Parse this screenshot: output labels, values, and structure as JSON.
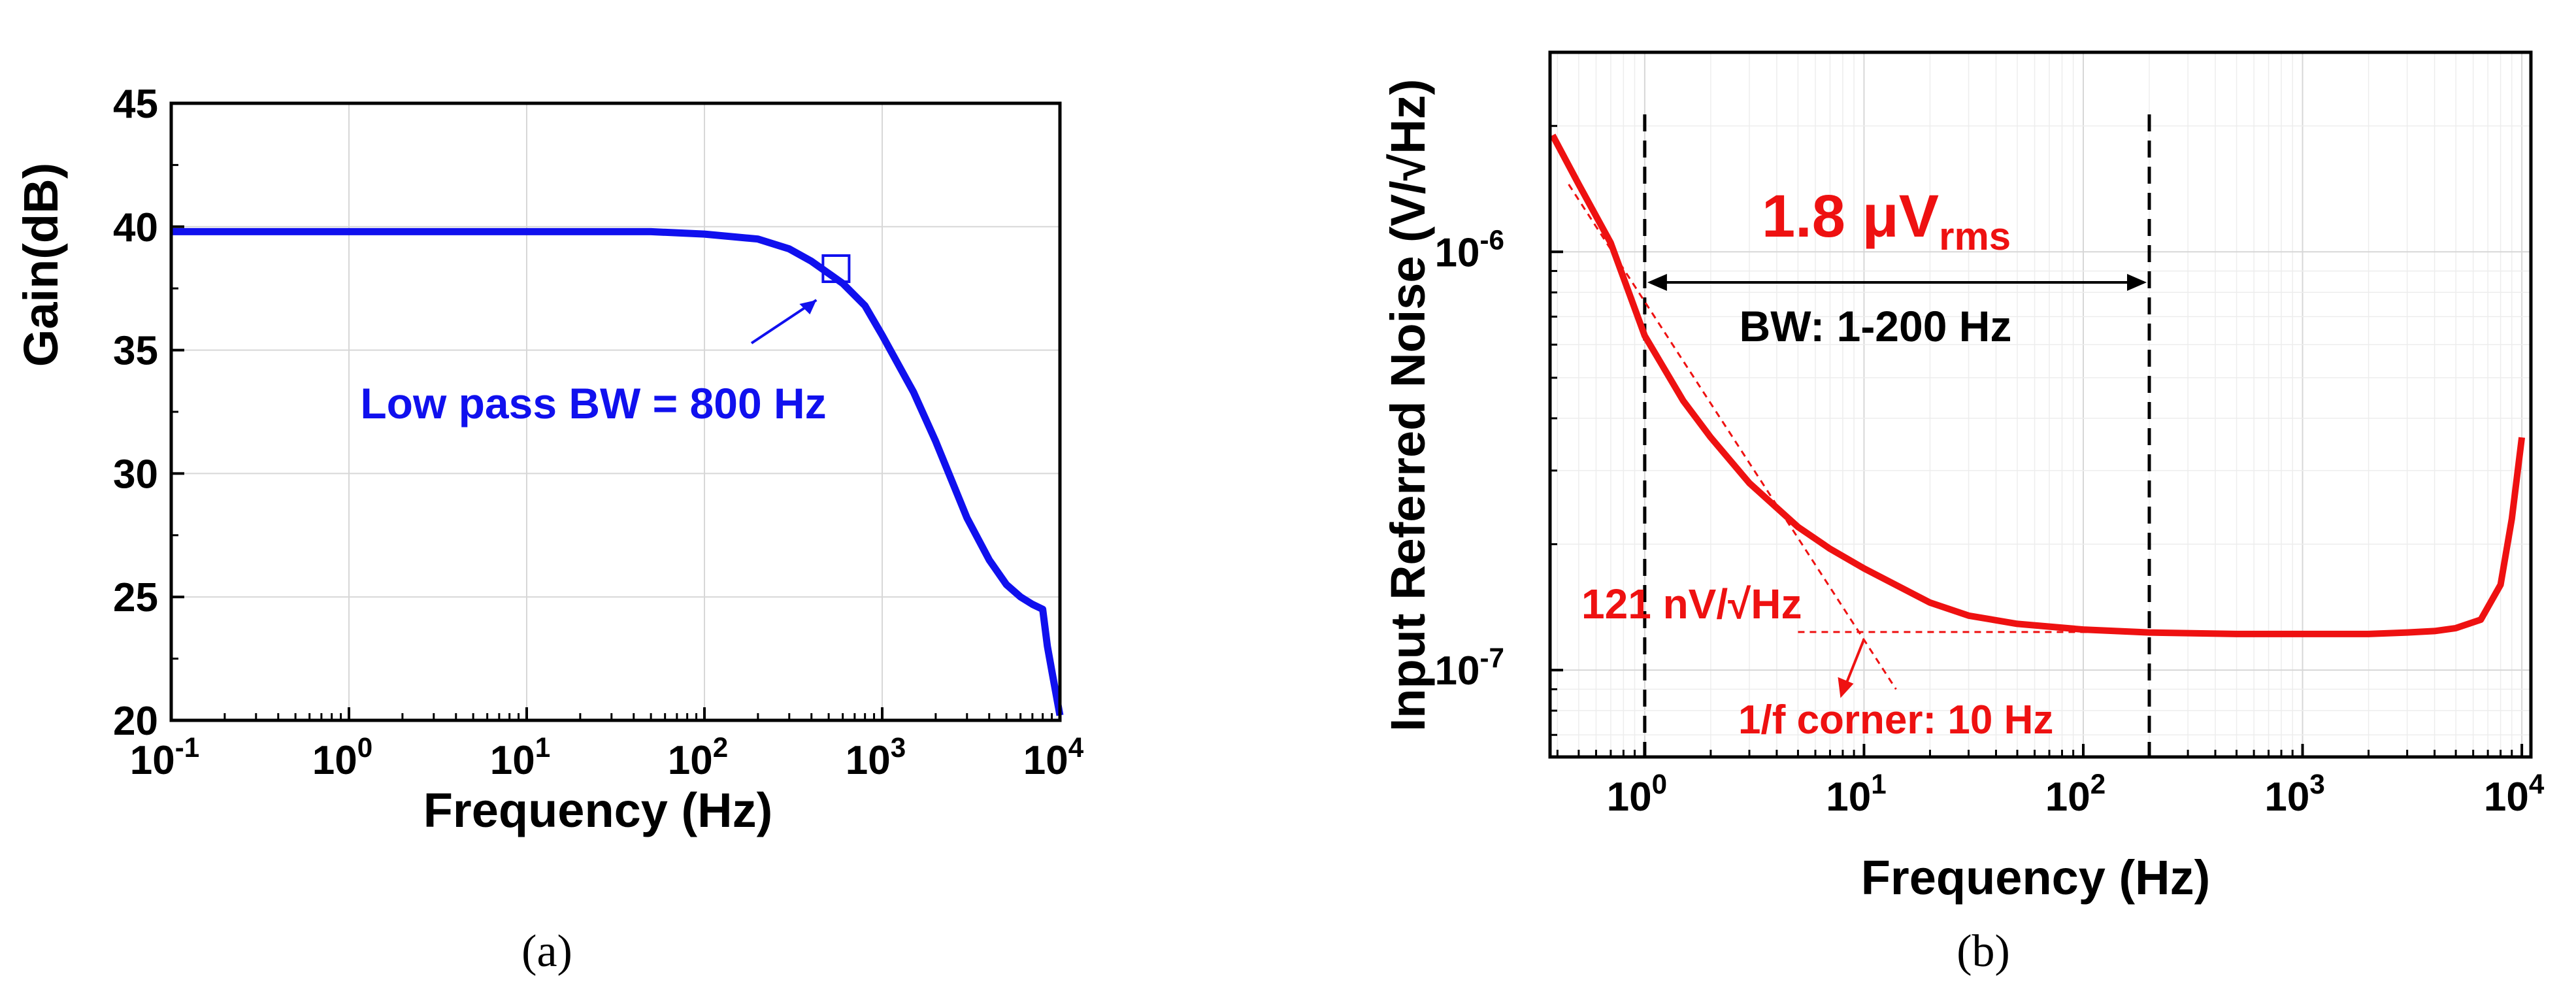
{
  "colors": {
    "panel_a_line": "#1010ee",
    "panel_b_line": "#ee1111",
    "black": "#000000"
  },
  "chart_data": [
    {
      "panel": "a",
      "type": "line",
      "caption": "(a)",
      "xlabel": "Frequency (Hz)",
      "ylabel": "Gain(dB)",
      "xscale": "log",
      "xlim": [
        0.1,
        10000
      ],
      "ylim": [
        20,
        45
      ],
      "xticks": [
        {
          "base": "10",
          "exp": "-1",
          "value": 0.1
        },
        {
          "base": "10",
          "exp": "0",
          "value": 1
        },
        {
          "base": "10",
          "exp": "1",
          "value": 10
        },
        {
          "base": "10",
          "exp": "2",
          "value": 100
        },
        {
          "base": "10",
          "exp": "3",
          "value": 1000
        },
        {
          "base": "10",
          "exp": "4",
          "value": 10000
        }
      ],
      "yticks": [
        "20",
        "25",
        "30",
        "35",
        "40",
        "45"
      ],
      "grid": true,
      "series": [
        {
          "name": "Gain",
          "x": [
            0.1,
            1,
            10,
            50,
            100,
            200,
            300,
            400,
            600,
            800,
            1000,
            1500,
            2000,
            3000,
            4000,
            5000,
            6000,
            7000,
            8000,
            8500,
            9000,
            10000
          ],
          "y": [
            39.8,
            39.8,
            39.8,
            39.8,
            39.7,
            39.5,
            39.1,
            38.6,
            37.7,
            36.8,
            35.6,
            33.3,
            31.3,
            28.2,
            26.5,
            25.5,
            25.0,
            24.7,
            24.5,
            23.0,
            22.0,
            20.2
          ]
        }
      ],
      "marker": {
        "shape": "square",
        "x": 550,
        "y": 38.3
      },
      "annotation": {
        "text": "Low pass BW = 800 Hz",
        "arrow_to": [
          550,
          38.3
        ],
        "text_at": [
          20,
          33
        ]
      }
    },
    {
      "panel": "b",
      "type": "line",
      "caption": "(b)",
      "xlabel": "Frequency (Hz)",
      "ylabel": "Input Referred Noise (V/√Hz)",
      "xscale": "log",
      "yscale": "log",
      "xlim": [
        0.37,
        11000
      ],
      "ylim": [
        6.2e-08,
        3e-06
      ],
      "xticks": [
        {
          "base": "10",
          "exp": "0",
          "value": 1
        },
        {
          "base": "10",
          "exp": "1",
          "value": 10
        },
        {
          "base": "10",
          "exp": "2",
          "value": 100
        },
        {
          "base": "10",
          "exp": "3",
          "value": 1000
        },
        {
          "base": "10",
          "exp": "4",
          "value": 10000
        }
      ],
      "yticks": [
        {
          "base": "10",
          "exp": "-7",
          "value": 1e-07
        },
        {
          "base": "10",
          "exp": "-6",
          "value": 1e-06
        }
      ],
      "grid": true,
      "series": [
        {
          "name": "Noise",
          "x": [
            0.38,
            0.5,
            0.7,
            1,
            1.5,
            2,
            3,
            5,
            7,
            10,
            20,
            30,
            50,
            100,
            200,
            500,
            1000,
            2000,
            3000,
            4000,
            5000,
            6500,
            8000,
            9000,
            10000
          ],
          "y": [
            1.9e-06,
            1.45e-06,
            1.05e-06,
            6.3e-07,
            4.4e-07,
            3.6e-07,
            2.8e-07,
            2.2e-07,
            1.95e-07,
            1.75e-07,
            1.45e-07,
            1.35e-07,
            1.29e-07,
            1.25e-07,
            1.23e-07,
            1.22e-07,
            1.22e-07,
            1.22e-07,
            1.23e-07,
            1.24e-07,
            1.26e-07,
            1.32e-07,
            1.6e-07,
            2.3e-07,
            3.6e-07
          ]
        }
      ],
      "fit_lines": {
        "one_over_f": {
          "x": [
            0.45,
            14
          ],
          "y": [
            1.45e-06,
            9e-08
          ]
        },
        "flat": {
          "x": [
            5,
            200
          ],
          "y": [
            1.22e-07,
            1.22e-07
          ]
        }
      },
      "vlines": [
        1,
        200
      ],
      "bandwidth_arrow": {
        "x": [
          1,
          200
        ],
        "y": 9.2e-07
      },
      "annotations": {
        "rms_value": "1.8 μV",
        "rms_subscript": "rms",
        "bw_label": "BW: 1-200 Hz",
        "floor_label": "121 nV/√Hz",
        "corner_label": "1/f corner: 10 Hz"
      }
    }
  ]
}
